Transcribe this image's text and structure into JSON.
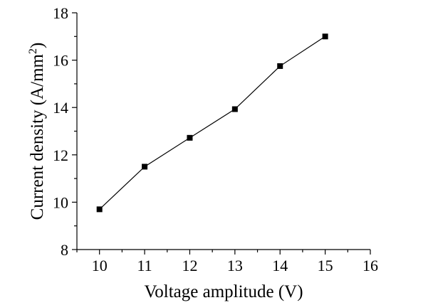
{
  "chart_data": {
    "type": "line",
    "title": "",
    "xlabel": "Voltage amplitude (V)",
    "ylabel_prefix": "Current density (A/mm",
    "ylabel_sup": "2",
    "ylabel_suffix": ")",
    "xlim": [
      9.5,
      16
    ],
    "ylim": [
      8,
      18
    ],
    "x_major_ticks": [
      10,
      11,
      12,
      13,
      14,
      15,
      16
    ],
    "x_tick_labels": [
      "10",
      "11",
      "12",
      "13",
      "14",
      "15",
      "16"
    ],
    "y_major_ticks": [
      8,
      10,
      12,
      14,
      16,
      18
    ],
    "y_tick_labels": [
      "8",
      "10",
      "12",
      "14",
      "16",
      "18"
    ],
    "series": [
      {
        "name": "Current density",
        "x": [
          10,
          11,
          12,
          13,
          14,
          15
        ],
        "y": [
          9.7,
          11.5,
          12.72,
          13.93,
          15.75,
          17.0
        ],
        "marker": "square",
        "color": "#000000"
      }
    ],
    "grid": false,
    "legend": "none"
  }
}
